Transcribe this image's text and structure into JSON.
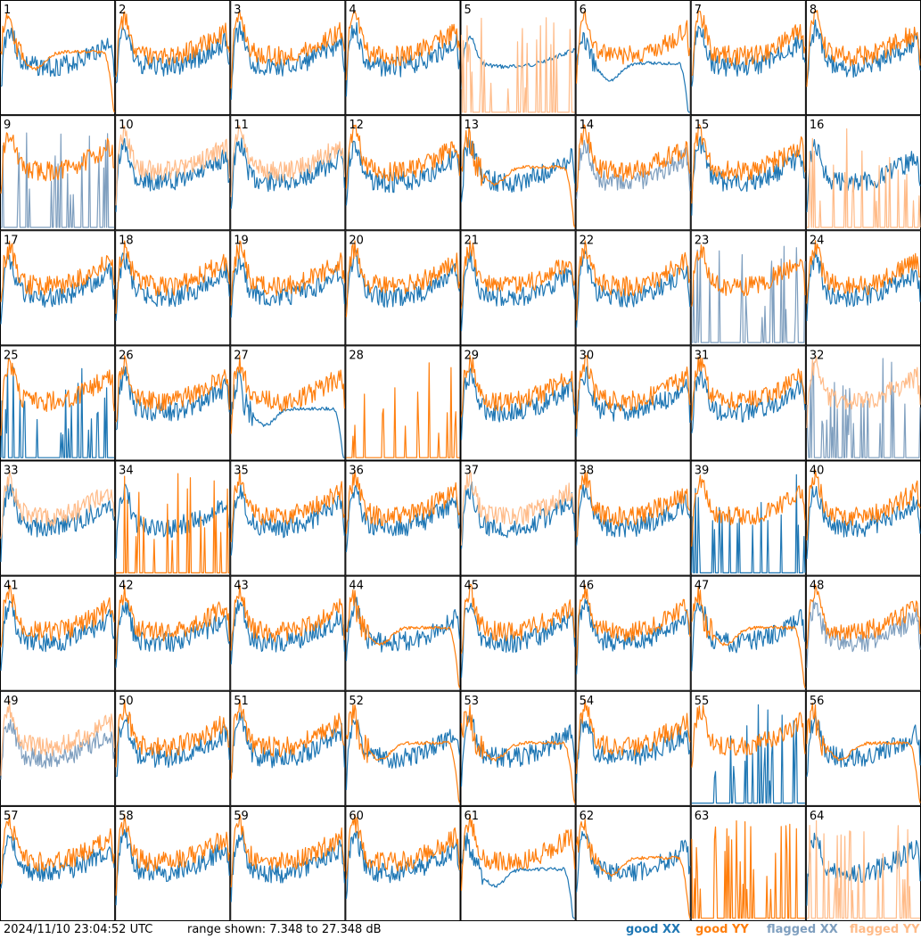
{
  "footer": {
    "timestamp": "2024/11/10 23:04:52 UTC",
    "range": "range shown: 7.348 to 27.348 dB"
  },
  "legend": {
    "good": "good",
    "flagged": "flagged",
    "xx": "XX",
    "yy": "YY"
  },
  "colors": {
    "good_xx": "#1f77b4",
    "good_yy": "#ff7f0e",
    "flagged_xx": "#7f9fbf",
    "flagged_yy": "#ffbb88",
    "grid_border": "#000000"
  },
  "chart_data": {
    "type": "line",
    "layout": "8x8 small multiples",
    "y_range_db": [
      7.348,
      27.348
    ],
    "series": [
      "XX",
      "YY"
    ],
    "panels": [
      {
        "id": "1",
        "xx": "good",
        "yy": "good",
        "yy_shape": "dropoff"
      },
      {
        "id": "2",
        "xx": "good",
        "yy": "good",
        "yy_shape": "bandpass"
      },
      {
        "id": "3",
        "xx": "good",
        "yy": "good",
        "yy_shape": "bandpass"
      },
      {
        "id": "4",
        "xx": "good",
        "yy": "good",
        "yy_shape": "bandpass"
      },
      {
        "id": "5",
        "xx": "good",
        "yy": "flagged",
        "xx_shape": "smooth",
        "yy_shape": "spiky"
      },
      {
        "id": "6",
        "xx": "good",
        "yy": "good",
        "xx_shape": "dropoff",
        "yy_shape": "bandpass"
      },
      {
        "id": "7",
        "xx": "good",
        "yy": "good",
        "yy_shape": "bandpass"
      },
      {
        "id": "8",
        "xx": "good",
        "yy": "good",
        "yy_shape": "bandpass"
      },
      {
        "id": "9",
        "xx": "flagged",
        "yy": "good",
        "xx_shape": "spiky",
        "yy_shape": "bandpass"
      },
      {
        "id": "10",
        "xx": "good",
        "yy": "flagged",
        "yy_shape": "bandpass"
      },
      {
        "id": "11",
        "xx": "good",
        "yy": "flagged",
        "yy_shape": "bandpass"
      },
      {
        "id": "12",
        "xx": "good",
        "yy": "good",
        "yy_shape": "bandpass"
      },
      {
        "id": "13",
        "xx": "good",
        "yy": "good",
        "yy_shape": "dropoff"
      },
      {
        "id": "14",
        "xx": "flagged",
        "yy": "good",
        "yy_shape": "bandpass"
      },
      {
        "id": "15",
        "xx": "good",
        "yy": "good",
        "yy_shape": "bandpass"
      },
      {
        "id": "16",
        "xx": "good",
        "yy": "flagged",
        "yy_shape": "spiky"
      },
      {
        "id": "17",
        "xx": "good",
        "yy": "good",
        "yy_shape": "bandpass"
      },
      {
        "id": "18",
        "xx": "good",
        "yy": "good",
        "yy_shape": "bandpass"
      },
      {
        "id": "19",
        "xx": "good",
        "yy": "good",
        "yy_shape": "bandpass"
      },
      {
        "id": "20",
        "xx": "good",
        "yy": "good",
        "yy_shape": "bandpass"
      },
      {
        "id": "21",
        "xx": "good",
        "yy": "good",
        "yy_shape": "bandpass"
      },
      {
        "id": "22",
        "xx": "good",
        "yy": "good",
        "yy_shape": "bandpass"
      },
      {
        "id": "23",
        "xx": "flagged",
        "yy": "good",
        "xx_shape": "spiky",
        "yy_shape": "bandpass"
      },
      {
        "id": "24",
        "xx": "good",
        "yy": "good",
        "yy_shape": "bandpass"
      },
      {
        "id": "25",
        "xx": "good",
        "yy": "good",
        "xx_shape": "spiky",
        "yy_shape": "bandpass"
      },
      {
        "id": "26",
        "xx": "good",
        "yy": "good",
        "yy_shape": "bandpass"
      },
      {
        "id": "27",
        "xx": "good",
        "yy": "good",
        "xx_shape": "dropoff",
        "yy_shape": "bandpass"
      },
      {
        "id": "28",
        "xx": "good",
        "yy": "good",
        "xx_shape": "empty",
        "yy_shape": "spiky"
      },
      {
        "id": "29",
        "xx": "good",
        "yy": "good",
        "yy_shape": "bandpass"
      },
      {
        "id": "30",
        "xx": "good",
        "yy": "good",
        "yy_shape": "bandpass"
      },
      {
        "id": "31",
        "xx": "good",
        "yy": "good",
        "yy_shape": "bandpass"
      },
      {
        "id": "32",
        "xx": "flagged",
        "yy": "flagged",
        "xx_shape": "spiky",
        "yy_shape": "bandpass"
      },
      {
        "id": "33",
        "xx": "good",
        "yy": "flagged",
        "yy_shape": "bandpass"
      },
      {
        "id": "34",
        "xx": "good",
        "yy": "good",
        "yy_shape": "spiky"
      },
      {
        "id": "35",
        "xx": "good",
        "yy": "good",
        "yy_shape": "bandpass"
      },
      {
        "id": "36",
        "xx": "good",
        "yy": "good",
        "yy_shape": "bandpass"
      },
      {
        "id": "37",
        "xx": "good",
        "yy": "flagged",
        "yy_shape": "bandpass"
      },
      {
        "id": "38",
        "xx": "good",
        "yy": "good",
        "yy_shape": "bandpass"
      },
      {
        "id": "39",
        "xx": "good",
        "yy": "good",
        "xx_shape": "spiky",
        "yy_shape": "bandpass"
      },
      {
        "id": "40",
        "xx": "good",
        "yy": "good",
        "yy_shape": "bandpass"
      },
      {
        "id": "41",
        "xx": "good",
        "yy": "good",
        "yy_shape": "bandpass"
      },
      {
        "id": "42",
        "xx": "good",
        "yy": "good",
        "yy_shape": "bandpass"
      },
      {
        "id": "43",
        "xx": "good",
        "yy": "good",
        "yy_shape": "bandpass"
      },
      {
        "id": "44",
        "xx": "good",
        "yy": "good",
        "yy_shape": "dropoff"
      },
      {
        "id": "45",
        "xx": "good",
        "yy": "good",
        "yy_shape": "bandpass"
      },
      {
        "id": "46",
        "xx": "good",
        "yy": "good",
        "yy_shape": "bandpass"
      },
      {
        "id": "47",
        "xx": "good",
        "yy": "good",
        "yy_shape": "dropoff"
      },
      {
        "id": "48",
        "xx": "flagged",
        "yy": "good",
        "yy_shape": "bandpass"
      },
      {
        "id": "49",
        "xx": "flagged",
        "yy": "flagged",
        "yy_shape": "bandpass"
      },
      {
        "id": "50",
        "xx": "good",
        "yy": "good",
        "yy_shape": "bandpass"
      },
      {
        "id": "51",
        "xx": "good",
        "yy": "good",
        "yy_shape": "bandpass"
      },
      {
        "id": "52",
        "xx": "good",
        "yy": "good",
        "yy_shape": "dropoff"
      },
      {
        "id": "53",
        "xx": "good",
        "yy": "good",
        "yy_shape": "dropoff"
      },
      {
        "id": "54",
        "xx": "good",
        "yy": "good",
        "yy_shape": "bandpass"
      },
      {
        "id": "55",
        "xx": "good",
        "yy": "good",
        "xx_shape": "spiky",
        "yy_shape": "bandpass"
      },
      {
        "id": "56",
        "xx": "good",
        "yy": "good",
        "yy_shape": "dropoff"
      },
      {
        "id": "57",
        "xx": "good",
        "yy": "good",
        "yy_shape": "bandpass"
      },
      {
        "id": "58",
        "xx": "good",
        "yy": "good",
        "yy_shape": "bandpass"
      },
      {
        "id": "59",
        "xx": "good",
        "yy": "good",
        "yy_shape": "bandpass"
      },
      {
        "id": "60",
        "xx": "good",
        "yy": "good",
        "yy_shape": "bandpass"
      },
      {
        "id": "61",
        "xx": "good",
        "yy": "good",
        "xx_shape": "dropoff",
        "yy_shape": "bandpass"
      },
      {
        "id": "62",
        "xx": "good",
        "yy": "good",
        "yy_shape": "dropoff"
      },
      {
        "id": "63",
        "xx": "good",
        "yy": "good",
        "xx_shape": "empty",
        "yy_shape": "spiky"
      },
      {
        "id": "64",
        "xx": "good",
        "yy": "flagged",
        "yy_shape": "spiky"
      }
    ]
  }
}
